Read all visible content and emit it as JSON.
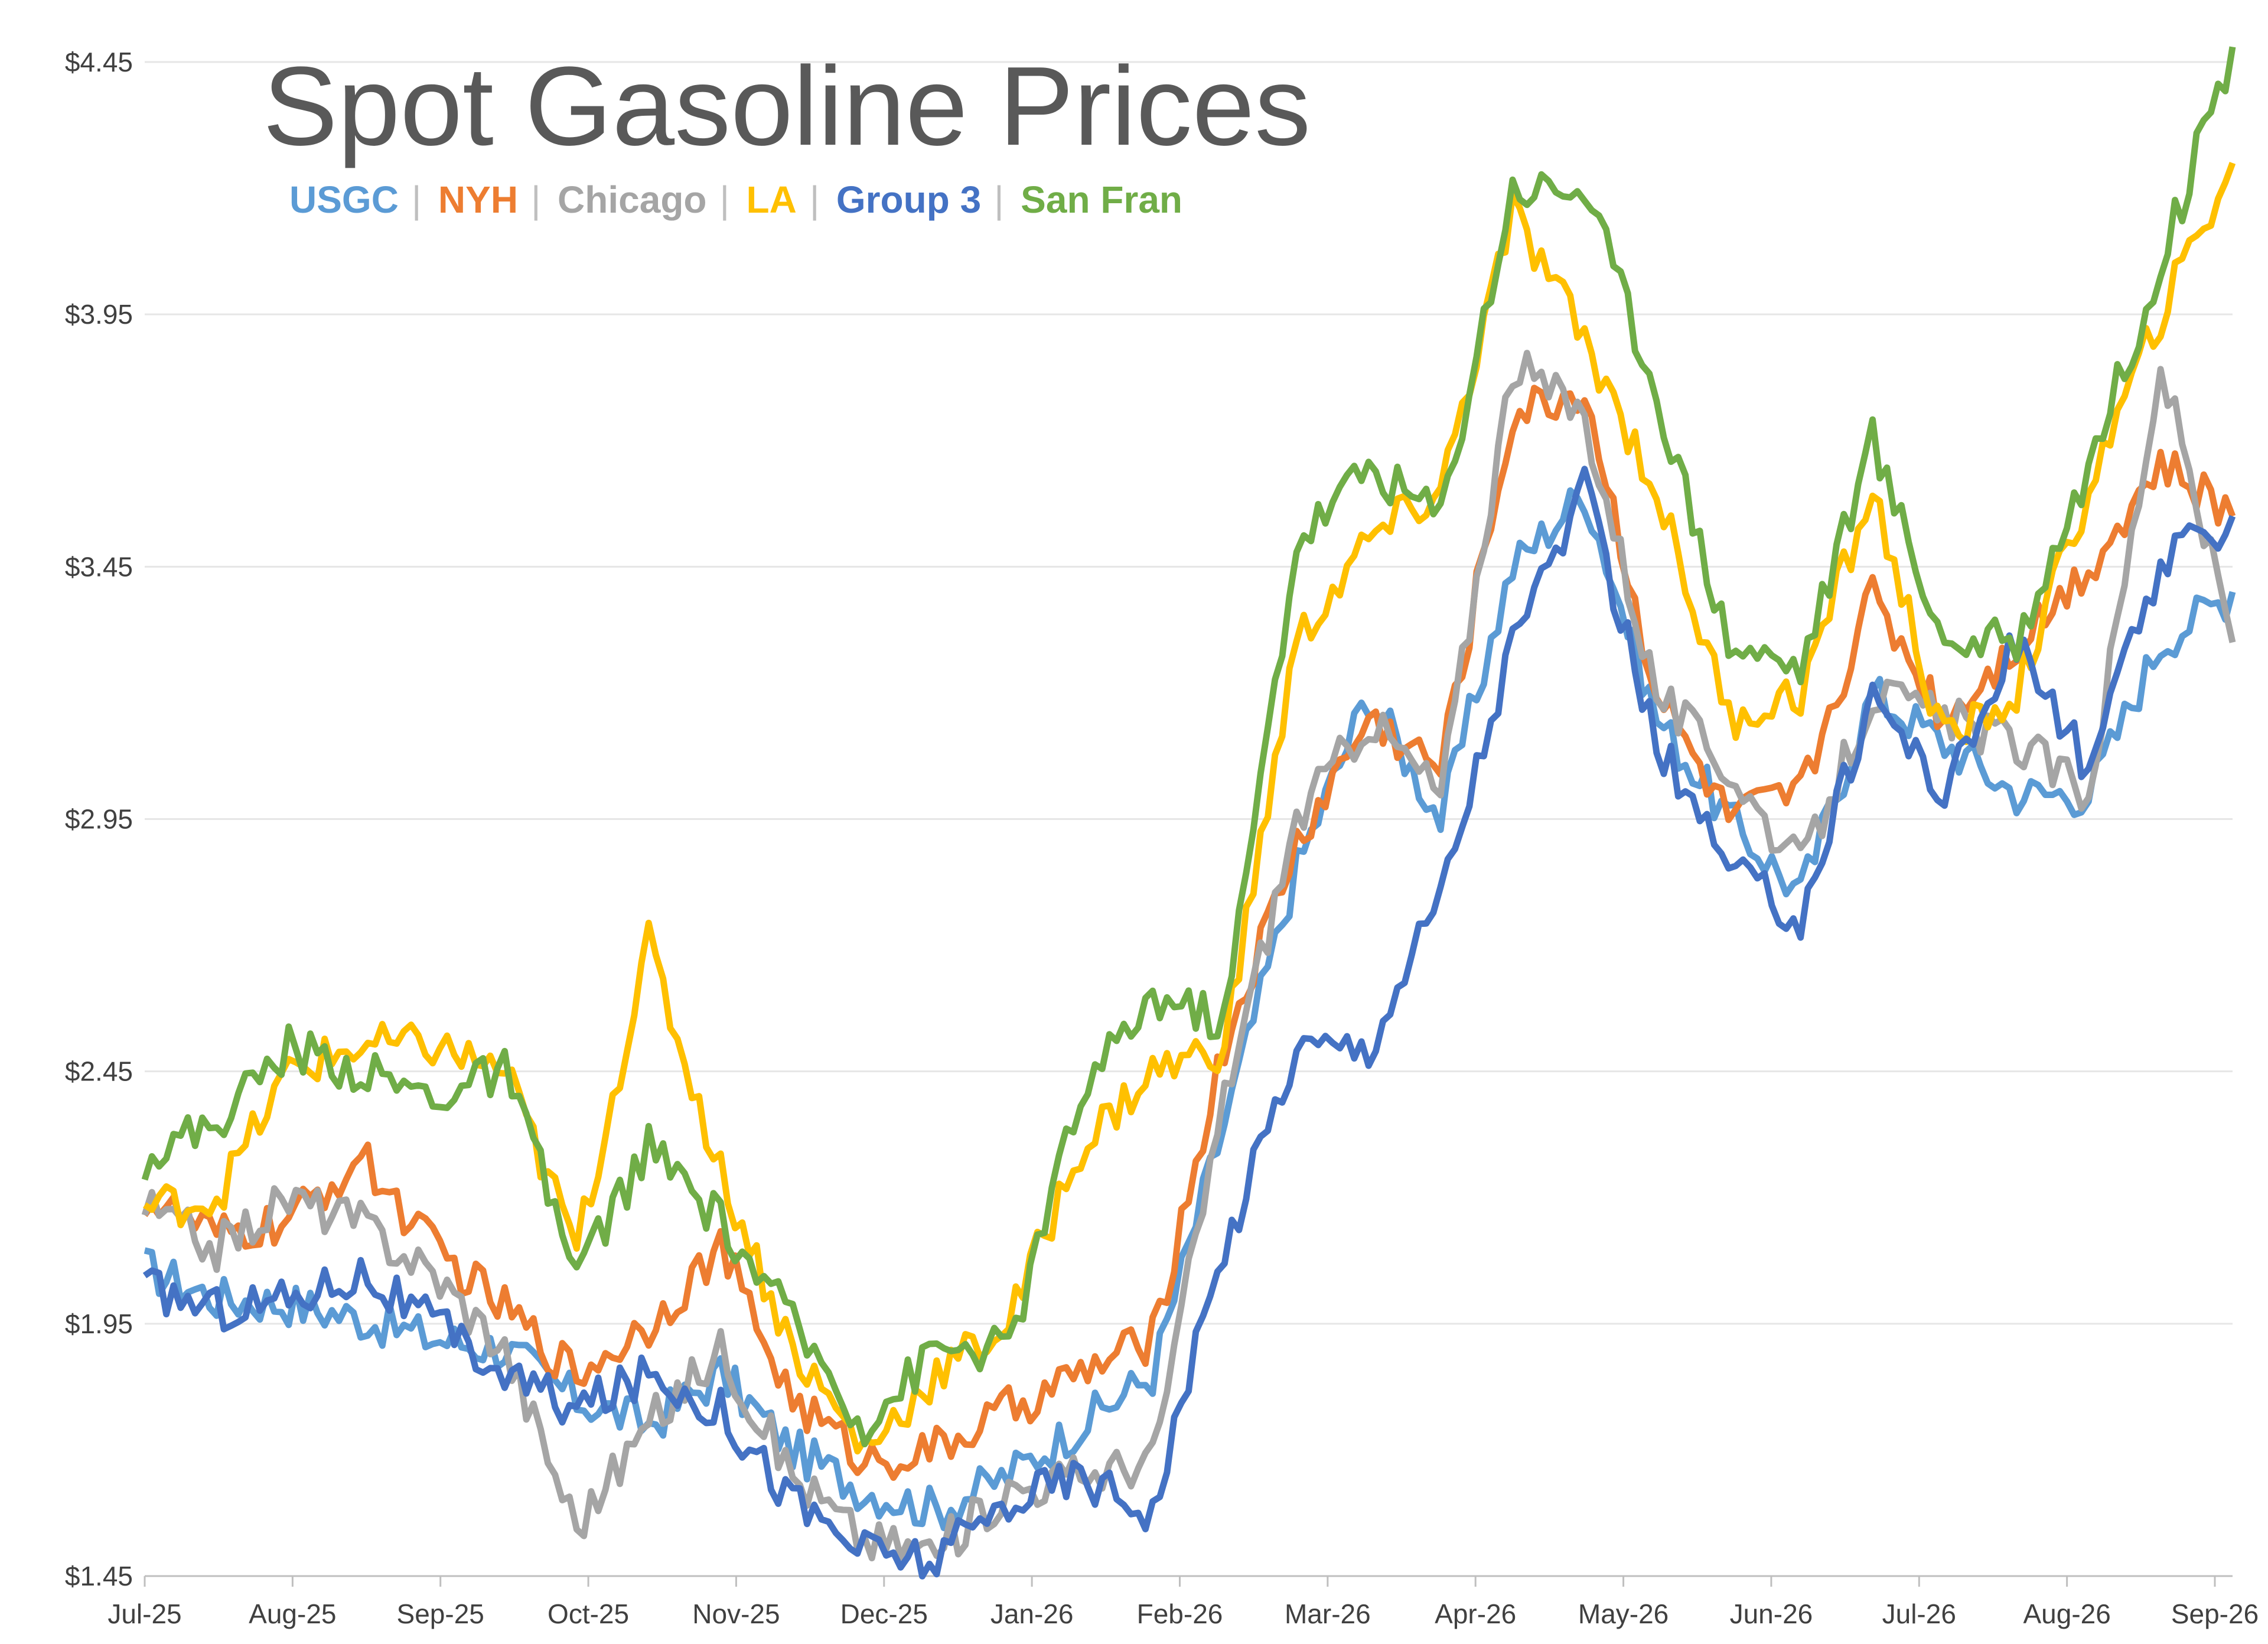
{
  "chart_data": {
    "type": "line",
    "title": "Spot Gasoline Prices",
    "xlabel": "",
    "ylabel": "",
    "ylim": [
      1.45,
      4.45
    ],
    "yticks": [
      "$1.45",
      "$1.95",
      "$2.45",
      "$2.95",
      "$3.45",
      "$3.95",
      "$4.45"
    ],
    "ytick_values": [
      1.45,
      1.95,
      2.45,
      2.95,
      3.45,
      3.95,
      4.45
    ],
    "xticks": [
      "Jul-25",
      "Aug-25",
      "Sep-25",
      "Oct-25",
      "Nov-25",
      "Dec-25",
      "Jan-26",
      "Feb-26",
      "Mar-26",
      "Apr-26",
      "May-26",
      "Jun-26",
      "Jul-26",
      "Aug-26",
      "Sep-26"
    ],
    "grid": "horizontal",
    "legend": "top-left, below title, separated by |",
    "x": [
      "Jul-25",
      "Jul-25 mid",
      "Aug-25",
      "Aug-25 mid",
      "Sep-25",
      "Sep-25 mid",
      "Oct-25",
      "Oct-25 mid",
      "Nov-25",
      "Nov-25 mid",
      "Dec-25",
      "Dec-25 mid",
      "Jan-26",
      "Jan-26 mid",
      "Feb-26",
      "Feb-26 mid",
      "Mar-26",
      "Mar-26 mid",
      "Apr-26",
      "Apr-26 mid",
      "May-26",
      "May-26 mid",
      "Jun-26",
      "Jun-26 mid",
      "Jul-26",
      "Jul-26 mid",
      "Aug-26",
      "Aug-26 mid",
      "Sep-26",
      "Sep-26 end"
    ],
    "series": [
      {
        "name": "USGC",
        "color": "#5B9BD5",
        "values": [
          2.06,
          2.0,
          1.99,
          1.96,
          1.92,
          1.9,
          1.8,
          1.75,
          1.85,
          1.7,
          1.62,
          1.58,
          1.65,
          1.75,
          1.85,
          2.35,
          2.85,
          3.2,
          2.95,
          3.45,
          3.6,
          3.15,
          2.95,
          2.8,
          3.2,
          3.1,
          3.0,
          3.0,
          3.3,
          3.4
        ]
      },
      {
        "name": "NYH",
        "color": "#ED7D31",
        "values": [
          2.2,
          2.12,
          2.15,
          2.28,
          2.1,
          1.98,
          1.85,
          1.95,
          2.1,
          1.8,
          1.68,
          1.7,
          1.78,
          1.85,
          1.92,
          2.5,
          2.9,
          3.15,
          3.05,
          3.75,
          3.8,
          3.2,
          2.95,
          3.0,
          3.4,
          3.15,
          3.3,
          3.45,
          3.65,
          3.55
        ]
      },
      {
        "name": "Chicago",
        "color": "#A5A5A5",
        "values": [
          2.18,
          2.1,
          2.2,
          2.15,
          2.05,
          1.9,
          1.55,
          1.75,
          1.9,
          1.65,
          1.52,
          1.5,
          1.62,
          1.65,
          1.68,
          2.4,
          2.95,
          3.15,
          3.0,
          3.85,
          3.75,
          3.2,
          3.05,
          2.85,
          3.2,
          3.15,
          3.1,
          3.0,
          3.85,
          3.3
        ]
      },
      {
        "name": "LA",
        "color": "#FFC000",
        "values": [
          2.18,
          2.2,
          2.45,
          2.5,
          2.5,
          2.45,
          2.1,
          2.7,
          2.25,
          1.9,
          1.7,
          1.85,
          1.95,
          2.3,
          2.45,
          2.5,
          3.3,
          3.5,
          3.6,
          4.15,
          3.9,
          3.6,
          3.15,
          3.2,
          3.6,
          3.1,
          3.2,
          3.6,
          3.95,
          4.25
        ]
      },
      {
        "name": "Group 3",
        "color": "#4472C4",
        "values": [
          2.02,
          1.98,
          2.0,
          2.05,
          1.95,
          1.85,
          1.78,
          1.85,
          1.78,
          1.6,
          1.5,
          1.48,
          1.6,
          1.65,
          1.58,
          2.1,
          2.5,
          2.5,
          2.8,
          3.3,
          3.6,
          3.1,
          2.85,
          2.75,
          3.2,
          3.0,
          3.3,
          3.05,
          3.45,
          3.55
        ]
      },
      {
        "name": "San Fran",
        "color": "#70AD47",
        "values": [
          2.28,
          2.35,
          2.5,
          2.45,
          2.4,
          2.45,
          2.05,
          2.3,
          2.15,
          1.95,
          1.75,
          1.9,
          1.9,
          2.4,
          2.6,
          2.55,
          3.5,
          3.65,
          3.55,
          4.2,
          4.2,
          3.8,
          3.3,
          3.25,
          3.7,
          3.3,
          3.3,
          3.65,
          4.05,
          4.48
        ]
      }
    ]
  }
}
